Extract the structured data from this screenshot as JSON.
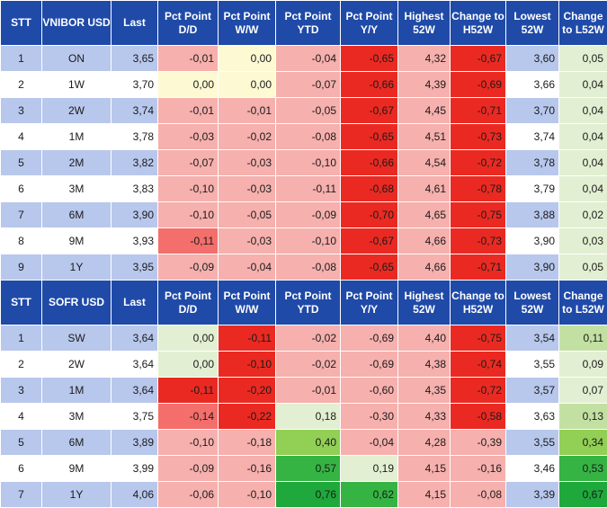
{
  "tables": [
    {
      "headers": [
        "STT",
        "VNIBOR USD",
        "Last",
        "Pct Point D/D",
        "Pct Point W/W",
        "Pct Point YTD",
        "Pct Point Y/Y",
        "Highest 52W",
        "Change to H52W",
        "Lowest 52W",
        "Change to L52W"
      ],
      "rows": [
        {
          "stt": "1",
          "term": "ON",
          "last": "3,65",
          "dd": "-0,01",
          "ww": "0,00",
          "ytd": "-0,04",
          "yy": "-0,65",
          "high": "4,32",
          "chgh": "-0,67",
          "low": "3,60",
          "chgl": "0,05"
        },
        {
          "stt": "2",
          "term": "1W",
          "last": "3,70",
          "dd": "0,00",
          "ww": "0,00",
          "ytd": "-0,07",
          "yy": "-0,66",
          "high": "4,39",
          "chgh": "-0,69",
          "low": "3,66",
          "chgl": "0,04"
        },
        {
          "stt": "3",
          "term": "2W",
          "last": "3,74",
          "dd": "-0,01",
          "ww": "-0,01",
          "ytd": "-0,05",
          "yy": "-0,67",
          "high": "4,45",
          "chgh": "-0,71",
          "low": "3,70",
          "chgl": "0,04"
        },
        {
          "stt": "4",
          "term": "1M",
          "last": "3,78",
          "dd": "-0,03",
          "ww": "-0,02",
          "ytd": "-0,08",
          "yy": "-0,65",
          "high": "4,51",
          "chgh": "-0,73",
          "low": "3,74",
          "chgl": "0,04"
        },
        {
          "stt": "5",
          "term": "2M",
          "last": "3,82",
          "dd": "-0,07",
          "ww": "-0,03",
          "ytd": "-0,10",
          "yy": "-0,66",
          "high": "4,54",
          "chgh": "-0,72",
          "low": "3,78",
          "chgl": "0,04"
        },
        {
          "stt": "6",
          "term": "3M",
          "last": "3,83",
          "dd": "-0,10",
          "ww": "-0,03",
          "ytd": "-0,11",
          "yy": "-0,68",
          "high": "4,61",
          "chgh": "-0,78",
          "low": "3,79",
          "chgl": "0,04"
        },
        {
          "stt": "7",
          "term": "6M",
          "last": "3,90",
          "dd": "-0,10",
          "ww": "-0,05",
          "ytd": "-0,09",
          "yy": "-0,70",
          "high": "4,65",
          "chgh": "-0,75",
          "low": "3,88",
          "chgl": "0,02"
        },
        {
          "stt": "8",
          "term": "9M",
          "last": "3,93",
          "dd": "-0,11",
          "ww": "-0,03",
          "ytd": "-0,10",
          "yy": "-0,67",
          "high": "4,66",
          "chgh": "-0,73",
          "low": "3,90",
          "chgl": "0,03"
        },
        {
          "stt": "9",
          "term": "1Y",
          "last": "3,95",
          "dd": "-0,09",
          "ww": "-0,04",
          "ytd": "-0,08",
          "yy": "-0,65",
          "high": "4,66",
          "chgh": "-0,71",
          "low": "3,90",
          "chgl": "0,05"
        }
      ]
    },
    {
      "headers": [
        "STT",
        "SOFR USD",
        "Last",
        "Pct Point D/D",
        "Pct Point W/W",
        "Pct Point YTD",
        "Pct Point Y/Y",
        "Highest 52W",
        "Change to H52W",
        "Lowest 52W",
        "Change to L52W"
      ],
      "rows": [
        {
          "stt": "1",
          "term": "SW",
          "last": "3,64",
          "dd": "0,00",
          "ww": "-0,11",
          "ytd": "-0,02",
          "yy": "-0,69",
          "high": "4,40",
          "chgh": "-0,75",
          "low": "3,54",
          "chgl": "0,11"
        },
        {
          "stt": "2",
          "term": "2W",
          "last": "3,64",
          "dd": "0,00",
          "ww": "-0,10",
          "ytd": "-0,02",
          "yy": "-0,69",
          "high": "4,38",
          "chgh": "-0,74",
          "low": "3,55",
          "chgl": "0,09"
        },
        {
          "stt": "3",
          "term": "1M",
          "last": "3,64",
          "dd": "-0,11",
          "ww": "-0,20",
          "ytd": "-0,01",
          "yy": "-0,60",
          "high": "4,35",
          "chgh": "-0,72",
          "low": "3,57",
          "chgl": "0,07"
        },
        {
          "stt": "4",
          "term": "3M",
          "last": "3,75",
          "dd": "-0,14",
          "ww": "-0,22",
          "ytd": "0,18",
          "yy": "-0,30",
          "high": "4,33",
          "chgh": "-0,58",
          "low": "3,63",
          "chgl": "0,13"
        },
        {
          "stt": "5",
          "term": "6M",
          "last": "3,89",
          "dd": "-0,10",
          "ww": "-0,18",
          "ytd": "0,40",
          "yy": "-0,04",
          "high": "4,28",
          "chgh": "-0,39",
          "low": "3,55",
          "chgl": "0,34"
        },
        {
          "stt": "6",
          "term": "9M",
          "last": "3,99",
          "dd": "-0,09",
          "ww": "-0,16",
          "ytd": "0,57",
          "yy": "0,19",
          "high": "4,15",
          "chgh": "-0,16",
          "low": "3,46",
          "chgl": "0,53"
        },
        {
          "stt": "7",
          "term": "1Y",
          "last": "4,06",
          "dd": "-0,06",
          "ww": "-0,10",
          "ytd": "0,76",
          "yy": "0,62",
          "high": "4,15",
          "chgh": "-0,08",
          "low": "3,39",
          "chgl": "0,67"
        }
      ]
    }
  ],
  "colors": {
    "header": "#1f4aa8",
    "stripe_blue": "#b8c7ec",
    "stripe_light": "#ffffff",
    "yellow": "#fdf9d3",
    "red_strong": "#ea2a22",
    "red_medium": "#f46f6b",
    "red_light": "#f6b0ad",
    "green_light": "#e3efd2",
    "green_soft": "#c3e0a3",
    "green_medium": "#92cf55",
    "green_strong": "#35b443",
    "green_dark": "#1fa83b"
  },
  "cell_fills": [
    {
      "dd": [
        "red_light",
        "yellow",
        "red_light",
        "red_light",
        "red_light",
        "red_light",
        "red_light",
        "red_medium",
        "red_light"
      ],
      "ww": [
        "yellow",
        "yellow",
        "red_light",
        "red_light",
        "red_light",
        "red_light",
        "red_light",
        "red_light",
        "red_light"
      ],
      "ytd": [
        "red_light",
        "red_light",
        "red_light",
        "red_light",
        "red_light",
        "red_light",
        "red_light",
        "red_light",
        "red_light"
      ],
      "yy": [
        "red_strong",
        "red_strong",
        "red_strong",
        "red_strong",
        "red_strong",
        "red_strong",
        "red_strong",
        "red_strong",
        "red_strong"
      ],
      "high": [
        "red_light",
        "red_light",
        "red_light",
        "red_light",
        "red_light",
        "red_light",
        "red_light",
        "red_light",
        "red_light"
      ],
      "chgh": [
        "red_strong",
        "red_strong",
        "red_strong",
        "red_strong",
        "red_strong",
        "red_strong",
        "red_strong",
        "red_strong",
        "red_strong"
      ],
      "chgl": [
        "green_light",
        "green_light",
        "green_light",
        "green_light",
        "green_light",
        "green_light",
        "green_light",
        "green_light",
        "green_light"
      ]
    },
    {
      "dd": [
        "green_light",
        "green_light",
        "red_strong",
        "red_medium",
        "red_light",
        "red_light",
        "red_light"
      ],
      "ww": [
        "red_strong",
        "red_strong",
        "red_strong",
        "red_strong",
        "red_light",
        "red_light",
        "red_light"
      ],
      "ytd": [
        "red_light",
        "red_light",
        "red_light",
        "green_light",
        "green_medium",
        "green_strong",
        "green_dark"
      ],
      "yy": [
        "red_light",
        "red_light",
        "red_light",
        "red_light",
        "red_light",
        "green_light",
        "green_strong"
      ],
      "high": [
        "red_light",
        "red_light",
        "red_light",
        "red_light",
        "red_light",
        "red_light",
        "red_light"
      ],
      "chgh": [
        "red_strong",
        "red_strong",
        "red_strong",
        "red_strong",
        "red_light",
        "red_light",
        "red_light"
      ],
      "chgl": [
        "green_soft",
        "green_light",
        "green_light",
        "green_soft",
        "green_medium",
        "green_strong",
        "green_dark"
      ]
    }
  ]
}
